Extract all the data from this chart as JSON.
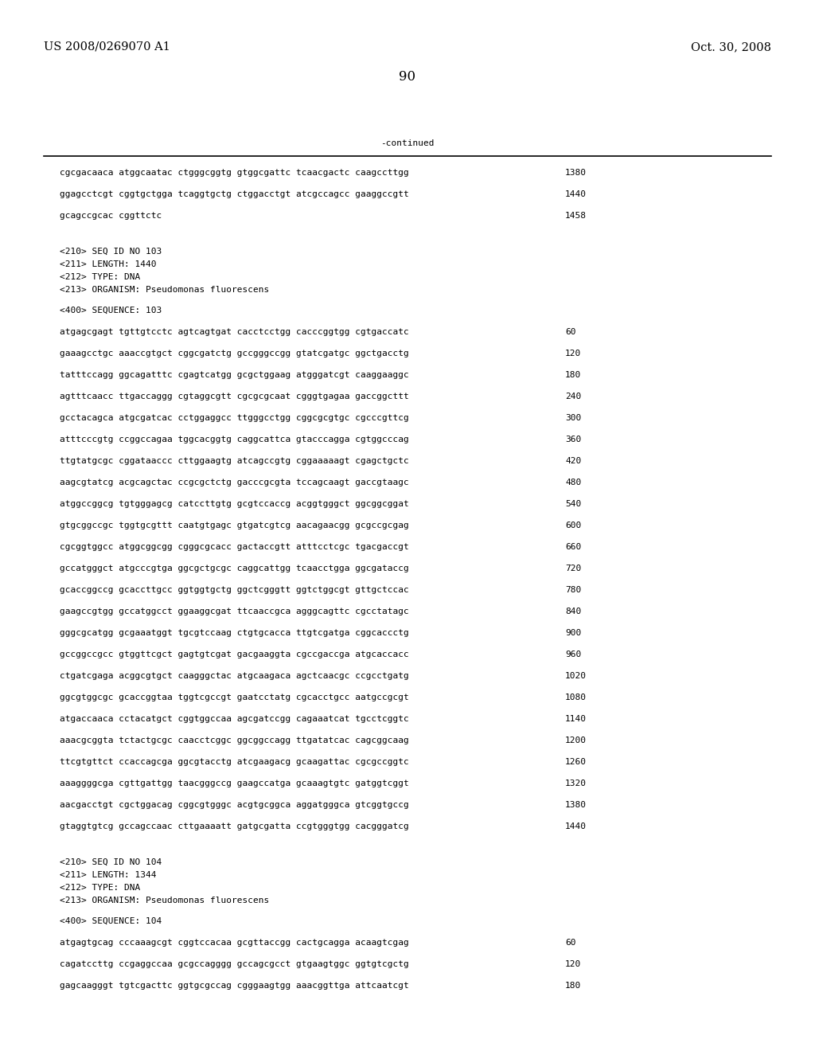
{
  "header_left": "US 2008/0269070 A1",
  "header_right": "Oct. 30, 2008",
  "page_number": "90",
  "continued_label": "-continued",
  "background_color": "#ffffff",
  "text_color": "#000000",
  "continued_lines": [
    [
      "cgcgacaaca atggcaatac ctgggcggtg gtggcgattc tcaacgactc caagccttgg",
      "1380"
    ],
    [
      "ggagcctcgt cggtgctgga tcaggtgctg ctggacctgt atcgccagcc gaaggccgtt",
      "1440"
    ],
    [
      "gcagccgcac cggttctc",
      "1458"
    ]
  ],
  "seq103_meta": [
    "<210> SEQ ID NO 103",
    "<211> LENGTH: 1440",
    "<212> TYPE: DNA",
    "<213> ORGANISM: Pseudomonas fluorescens"
  ],
  "seq103_header": "<400> SEQUENCE: 103",
  "seq103_lines": [
    [
      "atgagcgagt tgttgtcctc agtcagtgat cacctcctgg cacccggtgg cgtgaccatc",
      "60"
    ],
    [
      "gaaagcctgc aaaccgtgct cggcgatctg gccgggccgg gtatcgatgc ggctgacctg",
      "120"
    ],
    [
      "tatttccagg ggcagatttc cgagtcatgg gcgctggaag atgggatcgt caaggaaggc",
      "180"
    ],
    [
      "agtttcaacc ttgaccaggg cgtaggcgtt cgcgcgcaat cgggtgagaa gaccggcttt",
      "240"
    ],
    [
      "gcctacagca atgcgatcac cctggaggcc ttgggcctgg cggcgcgtgc cgcccgttcg",
      "300"
    ],
    [
      "atttcccgtg ccggccagaa tggcacggtg caggcattca gtacccagga cgtggcccag",
      "360"
    ],
    [
      "ttgtatgcgc cggataaccc cttggaagtg atcagccgtg cggaaaaagt cgagctgctc",
      "420"
    ],
    [
      "aagcgtatcg acgcagctac ccgcgctctg gacccgcgta tccagcaagt gaccgtaagc",
      "480"
    ],
    [
      "atggccggcg tgtgggagcg catccttgtg gcgtccaccg acggtgggct ggcggcggat",
      "540"
    ],
    [
      "gtgcggccgc tggtgcgttt caatgtgagc gtgatcgtcg aacagaacgg gcgccgcgag",
      "600"
    ],
    [
      "cgcggtggcc atggcggcgg cgggcgcacc gactaccgtt atttcctcgc tgacgaccgt",
      "660"
    ],
    [
      "gccatgggct atgcccgtga ggcgctgcgc caggcattgg tcaacctgga ggcgataccg",
      "720"
    ],
    [
      "gcaccggccg gcaccttgcc ggtggtgctg ggctcgggtt ggtctggcgt gttgctccac",
      "780"
    ],
    [
      "gaagccgtgg gccatggcct ggaaggcgat ttcaaccgca agggcagttc cgcctatagc",
      "840"
    ],
    [
      "gggcgcatgg gcgaaatggt tgcgtccaag ctgtgcacca ttgtcgatga cggcaccctg",
      "900"
    ],
    [
      "gccggccgcc gtggttcgct gagtgtcgat gacgaaggta cgccgaccga atgcaccacc",
      "960"
    ],
    [
      "ctgatcgaga acggcgtgct caagggctac atgcaagaca agctcaacgc ccgcctgatg",
      "1020"
    ],
    [
      "ggcgtggcgc gcaccggtaa tggtcgccgt gaatcctatg cgcacctgcc aatgccgcgt",
      "1080"
    ],
    [
      "atgaccaaca cctacatgct cggtggccaa agcgatccgg cagaaatcat tgcctcggtc",
      "1140"
    ],
    [
      "aaacgcggta tctactgcgc caacctcggc ggcggccagg ttgatatcac cagcggcaag",
      "1200"
    ],
    [
      "ttcgtgttct ccaccagcga ggcgtacctg atcgaagacg gcaagattac cgcgccggtc",
      "1260"
    ],
    [
      "aaaggggcga cgttgattgg taacgggccg gaagccatga gcaaagtgtc gatggtcggt",
      "1320"
    ],
    [
      "aacgacctgt cgctggacag cggcgtgggc acgtgcggca aggatgggca gtcggtgccg",
      "1380"
    ],
    [
      "gtaggtgtcg gccagccaac cttgaaaatt gatgcgatta ccgtgggtgg cacgggatcg",
      "1440"
    ]
  ],
  "seq104_meta": [
    "<210> SEQ ID NO 104",
    "<211> LENGTH: 1344",
    "<212> TYPE: DNA",
    "<213> ORGANISM: Pseudomonas fluorescens"
  ],
  "seq104_header": "<400> SEQUENCE: 104",
  "seq104_lines": [
    [
      "atgagtgcag cccaaagcgt cggtccacaa gcgttaccgg cactgcagga acaagtcgag",
      "60"
    ],
    [
      "cagatccttg ccgaggccaa gcgccagggg gccagcgcct gtgaagtggc ggtgtcgctg",
      "120"
    ],
    [
      "gagcaagggt tgtcgacttc ggtgcgccag cgggaagtgg aaacggttga attcaatcgt",
      "180"
    ]
  ]
}
